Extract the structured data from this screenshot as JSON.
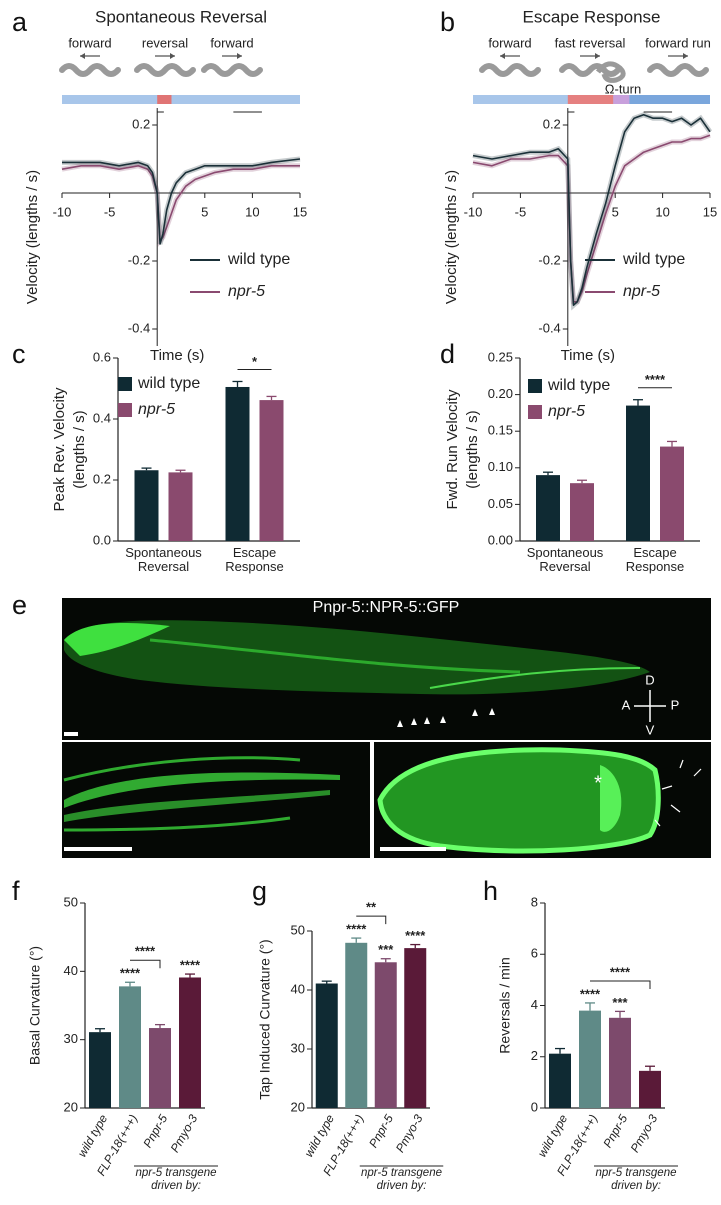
{
  "chart_data": [
    {
      "panel": "a",
      "type": "line",
      "title": "Spontaneous Reversal",
      "annotations": [
        {
          "text": "forward",
          "color": "#3a7cc8"
        },
        {
          "text": "reversal",
          "color": "#d23c3c"
        },
        {
          "text": "forward",
          "color": "#3a7cc8"
        }
      ],
      "xlabel": "Time (s)",
      "ylabel": "Velocity (lengths / s)",
      "x": [
        -10,
        -8,
        -6,
        -4,
        -2,
        -1,
        -0.5,
        0,
        0.3,
        0.6,
        1,
        1.5,
        2,
        3,
        4,
        5,
        6,
        8,
        10,
        12,
        15
      ],
      "series": [
        {
          "name": "wild type",
          "color": "#1a3038",
          "values": [
            0.09,
            0.09,
            0.09,
            0.08,
            0.09,
            0.08,
            0.06,
            0.0,
            -0.15,
            -0.12,
            -0.05,
            0.0,
            0.03,
            0.06,
            0.07,
            0.08,
            0.08,
            0.08,
            0.08,
            0.09,
            0.1
          ]
        },
        {
          "name": "npr-5",
          "color": "#8a4a70",
          "values": [
            0.07,
            0.08,
            0.08,
            0.07,
            0.08,
            0.07,
            0.05,
            0.0,
            -0.14,
            -0.13,
            -0.1,
            -0.06,
            -0.02,
            0.02,
            0.04,
            0.05,
            0.06,
            0.07,
            0.07,
            0.08,
            0.08
          ]
        }
      ],
      "xlim": [
        -10,
        15
      ],
      "ylim": [
        -0.45,
        0.25
      ],
      "xticks": [
        -10,
        -5,
        5,
        10,
        15
      ],
      "yticks": [
        0.2,
        -0.2,
        -0.4
      ],
      "legend": "lower right"
    },
    {
      "panel": "b",
      "type": "line",
      "title": "Escape Response",
      "annotations": [
        {
          "text": "forward",
          "color": "#3a7cc8"
        },
        {
          "text": "fast reversal",
          "color": "#d23c3c"
        },
        {
          "text": "forward run",
          "color": "#3a7cc8"
        },
        {
          "text": "Ω-turn",
          "color": "#9b59b6"
        }
      ],
      "xlabel": "Time (s)",
      "ylabel": "Velocity (lengths / s)",
      "x": [
        -10,
        -8,
        -6,
        -4,
        -2,
        -1,
        0,
        0.3,
        0.6,
        1,
        1.5,
        2,
        3,
        4,
        5,
        6,
        7,
        8,
        9,
        10,
        11,
        12,
        13,
        14,
        15
      ],
      "series": [
        {
          "name": "wild type",
          "color": "#1a3038",
          "values": [
            0.11,
            0.1,
            0.11,
            0.12,
            0.12,
            0.13,
            0.1,
            -0.2,
            -0.33,
            -0.32,
            -0.28,
            -0.22,
            -0.12,
            -0.03,
            0.08,
            0.18,
            0.22,
            0.23,
            0.22,
            0.22,
            0.21,
            0.22,
            0.2,
            0.22,
            0.18
          ]
        },
        {
          "name": "npr-5",
          "color": "#8a4a70",
          "values": [
            0.09,
            0.08,
            0.1,
            0.1,
            0.11,
            0.11,
            0.08,
            -0.2,
            -0.32,
            -0.32,
            -0.29,
            -0.24,
            -0.15,
            -0.06,
            0.02,
            0.08,
            0.1,
            0.12,
            0.13,
            0.14,
            0.15,
            0.15,
            0.16,
            0.16,
            0.17
          ]
        }
      ],
      "xlim": [
        -10,
        15
      ],
      "ylim": [
        -0.45,
        0.25
      ],
      "xticks": [
        -10,
        -5,
        5,
        10,
        15
      ],
      "yticks": [
        0.2,
        -0.2,
        -0.4
      ],
      "legend": "lower right"
    },
    {
      "panel": "c",
      "type": "bar",
      "ylabel": [
        "Peak Rev. Velocity",
        "(lengths / s)"
      ],
      "categories": [
        "Spontaneous Reversal",
        "Escape Response"
      ],
      "series": [
        {
          "name": "wild type",
          "color": "#0f2a33",
          "values": [
            0.232,
            0.505
          ],
          "errors": [
            0.007,
            0.018
          ]
        },
        {
          "name": "npr-5",
          "color": "#8a4a6e",
          "values": [
            0.225,
            0.462
          ],
          "errors": [
            0.007,
            0.012
          ]
        }
      ],
      "ylim": [
        0,
        0.6
      ],
      "yticks": [
        {
          "value": 0,
          "label": "0.0"
        },
        0.2,
        0.4,
        0.6
      ],
      "comparisons": [
        {
          "label": "*",
          "category": "Escape Response"
        }
      ],
      "legend": "upper left"
    },
    {
      "panel": "d",
      "type": "bar",
      "ylabel": [
        "Fwd. Run Velocity",
        "(lengths / s)"
      ],
      "categories": [
        "Spontaneous Reversal",
        "Escape Response"
      ],
      "series": [
        {
          "name": "wild type",
          "color": "#0f2a33",
          "values": [
            0.09,
            0.185
          ],
          "errors": [
            0.004,
            0.008
          ]
        },
        {
          "name": "npr-5",
          "color": "#8a4a6e",
          "values": [
            0.079,
            0.129
          ],
          "errors": [
            0.004,
            0.007
          ]
        }
      ],
      "ylim": [
        0,
        0.25
      ],
      "yticks": [
        {
          "value": 0,
          "label": "0.00"
        },
        0.05,
        {
          "value": 0.1,
          "label": "0.10"
        },
        0.15,
        {
          "value": 0.2,
          "label": "0.20"
        },
        0.25
      ],
      "comparisons": [
        {
          "label": "****",
          "category": "Escape Response"
        }
      ],
      "legend": "upper left"
    },
    {
      "panel": "f",
      "type": "bar",
      "ylabel": "Basal Curvature (°)",
      "categories": [
        "wild type",
        "FLP-18(+++)",
        "Pnpr-5",
        "Pmyo-3"
      ],
      "values": [
        31.1,
        37.8,
        31.7,
        39.1
      ],
      "errors": [
        0.5,
        0.6,
        0.5,
        0.5
      ],
      "colors": [
        "#0f2a33",
        "#5f8a87",
        "#7d4a6c",
        "#5a1a38"
      ],
      "ylim": [
        20,
        50
      ],
      "yticks": [
        20,
        30,
        40,
        50
      ],
      "significance": [
        null,
        "****",
        null,
        "****"
      ],
      "comparisons": [
        {
          "label": "****",
          "pair": [
            "FLP-18(+++)",
            "Pnpr-5"
          ]
        }
      ],
      "group_label": "npr-5 transgene driven by:"
    },
    {
      "panel": "g",
      "type": "bar",
      "ylabel": "Tap Induced Curvature (°)",
      "categories": [
        "wild type",
        "FLP-18(+++)",
        "Pnpr-5",
        "Pmyo-3"
      ],
      "values": [
        41.1,
        48.0,
        44.7,
        47.1
      ],
      "errors": [
        0.4,
        0.8,
        0.6,
        0.6
      ],
      "colors": [
        "#0f2a33",
        "#5f8a87",
        "#7d4a6c",
        "#5a1a38"
      ],
      "ylim": [
        20,
        50
      ],
      "yticks": [
        20,
        30,
        40,
        50
      ],
      "significance": [
        null,
        "****",
        "***",
        "****"
      ],
      "comparisons": [
        {
          "label": "**",
          "pair": [
            "FLP-18(+++)",
            "Pnpr-5"
          ]
        }
      ],
      "group_label": "npr-5 transgene driven by:"
    },
    {
      "panel": "h",
      "type": "bar",
      "ylabel": "Reversals / min",
      "categories": [
        "wild type",
        "FLP-18(+++)",
        "Pnpr-5",
        "Pmyo-3"
      ],
      "values": [
        2.12,
        3.8,
        3.52,
        1.45
      ],
      "errors": [
        0.2,
        0.3,
        0.25,
        0.18
      ],
      "colors": [
        "#0f2a33",
        "#5f8a87",
        "#7d4a6c",
        "#5a1a38"
      ],
      "ylim": [
        0,
        8
      ],
      "yticks": [
        0,
        2,
        4,
        6,
        8
      ],
      "significance": [
        null,
        "****",
        "***",
        null
      ],
      "comparisons": [
        {
          "label": "****",
          "pair": [
            "FLP-18(+++)",
            "Pmyo-3"
          ]
        }
      ],
      "group_label": "npr-5 transgene driven by:"
    }
  ],
  "image_panel": {
    "panel": "e",
    "caption": "Pnpr-5::NPR-5::GFP",
    "compass": [
      "D",
      "A",
      "P",
      "V"
    ],
    "marker": "*"
  }
}
